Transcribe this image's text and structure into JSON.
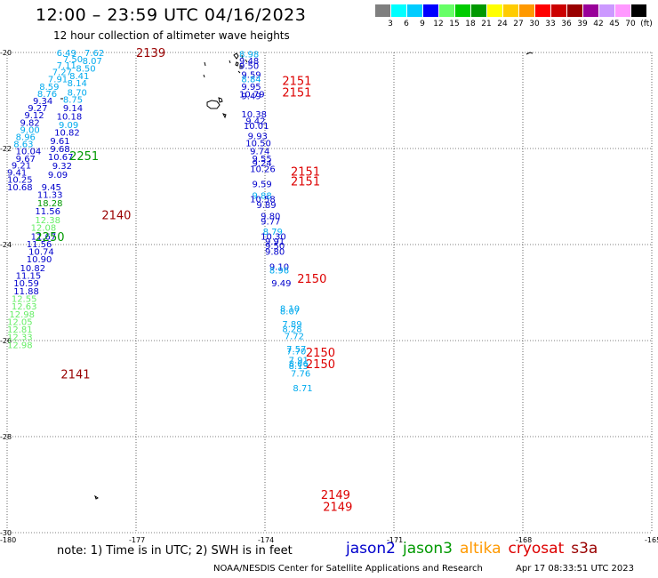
{
  "title": "12:00 – 23:59 UTC 04/16/2023",
  "subtitle": "12 hour collection of altimeter wave heights",
  "colorbar": {
    "colors": [
      "#7f7f7f",
      "#00ffff",
      "#00ccff",
      "#0000ff",
      "#66ff66",
      "#00cc00",
      "#009900",
      "#ffff00",
      "#ffcc00",
      "#ff9900",
      "#ff0000",
      "#cc0000",
      "#990000",
      "#990099",
      "#cc99ff",
      "#ff99ff",
      "#000000"
    ],
    "labels": [
      "3",
      "6",
      "9",
      "12",
      "15",
      "18",
      "21",
      "24",
      "27",
      "30",
      "33",
      "36",
      "39",
      "42",
      "45",
      "70",
      "(ft)"
    ]
  },
  "map": {
    "lon_range": [
      -180,
      -165
    ],
    "lat_range": [
      -30,
      -20
    ],
    "lon_ticks": [
      "-180",
      "-177",
      "-174",
      "-171",
      "-168",
      "-165"
    ],
    "lat_ticks": [
      "-20",
      "-22",
      "-24",
      "-26",
      "-28",
      "-30"
    ],
    "grid": "dotted"
  },
  "passes": [
    {
      "label": "2139",
      "lon": -177.0,
      "lat": -20.0,
      "color": "#990000"
    },
    {
      "label": "2151",
      "lon": -173.6,
      "lat": -20.58,
      "color": "#dd0000"
    },
    {
      "label": "2151",
      "lon": -173.6,
      "lat": -20.82,
      "color": "#dd0000"
    },
    {
      "label": "2251",
      "lon": -178.55,
      "lat": -22.15,
      "color": "#009900"
    },
    {
      "label": "2151",
      "lon": -173.4,
      "lat": -22.47,
      "color": "#dd0000"
    },
    {
      "label": "2151",
      "lon": -173.4,
      "lat": -22.68,
      "color": "#dd0000"
    },
    {
      "label": "2140",
      "lon": -177.8,
      "lat": -23.38,
      "color": "#990000"
    },
    {
      "label": "2250",
      "lon": -179.35,
      "lat": -23.83,
      "color": "#009900"
    },
    {
      "label": "2150",
      "lon": -173.25,
      "lat": -24.7,
      "color": "#dd0000"
    },
    {
      "label": "2150",
      "lon": -173.05,
      "lat": -26.24,
      "color": "#dd0000"
    },
    {
      "label": "2150",
      "lon": -173.05,
      "lat": -26.48,
      "color": "#dd0000"
    },
    {
      "label": "2141",
      "lon": -178.75,
      "lat": -26.69,
      "color": "#990000"
    },
    {
      "label": "2149",
      "lon": -172.7,
      "lat": -29.2,
      "color": "#dd0000"
    },
    {
      "label": "2149",
      "lon": -172.65,
      "lat": -29.45,
      "color": "#dd0000"
    }
  ],
  "measurements": [
    {
      "v": "6.49",
      "lon": -178.85,
      "lat": -20.0,
      "color": "#00aaee"
    },
    {
      "v": "7.62",
      "lon": -178.2,
      "lat": -20.0,
      "color": "#00aaee"
    },
    {
      "v": "7.50",
      "lon": -178.7,
      "lat": -20.13,
      "color": "#00aaee"
    },
    {
      "v": "8.07",
      "lon": -178.25,
      "lat": -20.17,
      "color": "#00aaee"
    },
    {
      "v": "7.11",
      "lon": -178.85,
      "lat": -20.26,
      "color": "#00aaee"
    },
    {
      "v": "8.50",
      "lon": -178.4,
      "lat": -20.32,
      "color": "#00aaee"
    },
    {
      "v": "7.27",
      "lon": -178.95,
      "lat": -20.4,
      "color": "#00aaee"
    },
    {
      "v": "8.41",
      "lon": -178.55,
      "lat": -20.48,
      "color": "#00aaee"
    },
    {
      "v": "7.91",
      "lon": -179.05,
      "lat": -20.55,
      "color": "#00aaee"
    },
    {
      "v": "8.14",
      "lon": -178.6,
      "lat": -20.63,
      "color": "#00aaee"
    },
    {
      "v": "8.59",
      "lon": -179.25,
      "lat": -20.7,
      "color": "#00aaee"
    },
    {
      "v": "8.76",
      "lon": -179.3,
      "lat": -20.85,
      "color": "#00aaee"
    },
    {
      "v": "8.70",
      "lon": -178.6,
      "lat": -20.82,
      "color": "#00aaee"
    },
    {
      "v": "9.34",
      "lon": -179.4,
      "lat": -21.0,
      "color": "#0000cc"
    },
    {
      "v": "8.75",
      "lon": -178.7,
      "lat": -20.97,
      "color": "#00aaee"
    },
    {
      "v": "9.27",
      "lon": -179.52,
      "lat": -21.15,
      "color": "#0000cc"
    },
    {
      "v": "9.14",
      "lon": -178.7,
      "lat": -21.15,
      "color": "#0000cc"
    },
    {
      "v": "9.12",
      "lon": -179.6,
      "lat": -21.3,
      "color": "#0000cc"
    },
    {
      "v": "10.18",
      "lon": -178.85,
      "lat": -21.32,
      "color": "#0000cc"
    },
    {
      "v": "9.82",
      "lon": -179.7,
      "lat": -21.45,
      "color": "#0000cc"
    },
    {
      "v": "9.09",
      "lon": -178.8,
      "lat": -21.5,
      "color": "#00aaee"
    },
    {
      "v": "9.00",
      "lon": -179.7,
      "lat": -21.6,
      "color": "#00aaee"
    },
    {
      "v": "10.82",
      "lon": -178.9,
      "lat": -21.66,
      "color": "#0000cc"
    },
    {
      "v": "8.96",
      "lon": -179.8,
      "lat": -21.75,
      "color": "#00aaee"
    },
    {
      "v": "9.61",
      "lon": -179.0,
      "lat": -21.83,
      "color": "#0000cc"
    },
    {
      "v": "8.63",
      "lon": -179.85,
      "lat": -21.9,
      "color": "#00aaee"
    },
    {
      "v": "10.04",
      "lon": -179.8,
      "lat": -22.05,
      "color": "#0000cc"
    },
    {
      "v": "9.68",
      "lon": -179.0,
      "lat": -22.0,
      "color": "#0000cc"
    },
    {
      "v": "9.67",
      "lon": -179.8,
      "lat": -22.2,
      "color": "#0000cc"
    },
    {
      "v": "10.67",
      "lon": -179.05,
      "lat": -22.17,
      "color": "#0000cc"
    },
    {
      "v": "9.21",
      "lon": -179.9,
      "lat": -22.34,
      "color": "#0000cc"
    },
    {
      "v": "9.32",
      "lon": -178.95,
      "lat": -22.35,
      "color": "#0000cc"
    },
    {
      "v": "9.41",
      "lon": -180.0,
      "lat": -22.49,
      "color": "#0000cc"
    },
    {
      "v": "10.25",
      "lon": -180.0,
      "lat": -22.64,
      "color": "#0000cc"
    },
    {
      "v": "9.09",
      "lon": -179.05,
      "lat": -22.54,
      "color": "#0000cc"
    },
    {
      "v": "10.68",
      "lon": -180.0,
      "lat": -22.8,
      "color": "#0000cc"
    },
    {
      "v": "9.45",
      "lon": -179.2,
      "lat": -22.8,
      "color": "#0000cc"
    },
    {
      "v": "11.33",
      "lon": -179.3,
      "lat": -22.95,
      "color": "#0000cc"
    },
    {
      "v": "18.28",
      "lon": -179.3,
      "lat": -23.13,
      "color": "#009900"
    },
    {
      "v": "11.56",
      "lon": -179.35,
      "lat": -23.3,
      "color": "#0000cc"
    },
    {
      "v": "12.38",
      "lon": -179.35,
      "lat": -23.48,
      "color": "#66ee66"
    },
    {
      "v": "12.08",
      "lon": -179.45,
      "lat": -23.64,
      "color": "#66ee66"
    },
    {
      "v": "11.67",
      "lon": -179.45,
      "lat": -23.82,
      "color": "#0000cc"
    },
    {
      "v": "11.56",
      "lon": -179.55,
      "lat": -23.98,
      "color": "#0000cc"
    },
    {
      "v": "10.74",
      "lon": -179.5,
      "lat": -24.14,
      "color": "#0000cc"
    },
    {
      "v": "10.90",
      "lon": -179.55,
      "lat": -24.3,
      "color": "#0000cc"
    },
    {
      "v": "10.82",
      "lon": -179.7,
      "lat": -24.48,
      "color": "#0000cc"
    },
    {
      "v": "11.15",
      "lon": -179.8,
      "lat": -24.64,
      "color": "#0000cc"
    },
    {
      "v": "10.59",
      "lon": -179.85,
      "lat": -24.8,
      "color": "#0000cc"
    },
    {
      "v": "11.88",
      "lon": -179.85,
      "lat": -24.96,
      "color": "#0000cc"
    },
    {
      "v": "12.55",
      "lon": -179.9,
      "lat": -25.12,
      "color": "#66ee66"
    },
    {
      "v": "12.63",
      "lon": -179.9,
      "lat": -25.28,
      "color": "#66ee66"
    },
    {
      "v": "12.98",
      "lon": -179.95,
      "lat": -25.44,
      "color": "#66ee66"
    },
    {
      "v": "12.05",
      "lon": -180.0,
      "lat": -25.6,
      "color": "#66ee66"
    },
    {
      "v": "12.81",
      "lon": -180.0,
      "lat": -25.76,
      "color": "#66ee66"
    },
    {
      "v": "12.33",
      "lon": -180.0,
      "lat": -25.92,
      "color": "#66ee66"
    },
    {
      "v": "12.98",
      "lon": -180.0,
      "lat": -26.08,
      "color": "#66ee66"
    },
    {
      "v": "8.98",
      "lon": -174.6,
      "lat": -20.03,
      "color": "#00aaee"
    },
    {
      "v": "9.48",
      "lon": -174.6,
      "lat": -20.17,
      "color": "#0000cc"
    },
    {
      "v": "9.50",
      "lon": -174.6,
      "lat": -20.27,
      "color": "#0000cc"
    },
    {
      "v": "9.59",
      "lon": -174.55,
      "lat": -20.45,
      "color": "#0000cc"
    },
    {
      "v": "8.84",
      "lon": -174.55,
      "lat": -20.55,
      "color": "#00aaee"
    },
    {
      "v": "9.95",
      "lon": -174.55,
      "lat": -20.7,
      "color": "#0000cc"
    },
    {
      "v": "10.79",
      "lon": -174.6,
      "lat": -20.86,
      "color": "#0000cc"
    },
    {
      "v": "9.49",
      "lon": -174.55,
      "lat": -20.9,
      "color": "#0000cc"
    },
    {
      "v": "10.38",
      "lon": -174.55,
      "lat": -21.28,
      "color": "#0000cc"
    },
    {
      "v": "9.42",
      "lon": -174.45,
      "lat": -21.42,
      "color": "#0000cc"
    },
    {
      "v": "10.01",
      "lon": -174.5,
      "lat": -21.52,
      "color": "#0000cc"
    },
    {
      "v": "9.93",
      "lon": -174.4,
      "lat": -21.73,
      "color": "#0000cc"
    },
    {
      "v": "10.50",
      "lon": -174.45,
      "lat": -21.88,
      "color": "#0000cc"
    },
    {
      "v": "9.74",
      "lon": -174.35,
      "lat": -22.05,
      "color": "#0000cc"
    },
    {
      "v": "9.55",
      "lon": -174.3,
      "lat": -22.2,
      "color": "#0000cc"
    },
    {
      "v": "9.24",
      "lon": -174.3,
      "lat": -22.3,
      "color": "#0000cc"
    },
    {
      "v": "10.26",
      "lon": -174.35,
      "lat": -22.42,
      "color": "#0000cc"
    },
    {
      "v": "9.59",
      "lon": -174.3,
      "lat": -22.73,
      "color": "#0000cc"
    },
    {
      "v": "9.88",
      "lon": -174.3,
      "lat": -22.97,
      "color": "#00aaee"
    },
    {
      "v": "10.58",
      "lon": -174.35,
      "lat": -23.05,
      "color": "#0000cc"
    },
    {
      "v": "9.89",
      "lon": -174.2,
      "lat": -23.17,
      "color": "#0000cc"
    },
    {
      "v": "9.80",
      "lon": -174.1,
      "lat": -23.4,
      "color": "#0000cc"
    },
    {
      "v": "9.77",
      "lon": -174.1,
      "lat": -23.51,
      "color": "#0000cc"
    },
    {
      "v": "8.79",
      "lon": -174.05,
      "lat": -23.72,
      "color": "#00aaee"
    },
    {
      "v": "10.30",
      "lon": -174.1,
      "lat": -23.82,
      "color": "#0000cc"
    },
    {
      "v": "9.91",
      "lon": -174.0,
      "lat": -23.93,
      "color": "#0000cc"
    },
    {
      "v": "9.50",
      "lon": -174.0,
      "lat": -24.02,
      "color": "#0000cc"
    },
    {
      "v": "9.80",
      "lon": -174.0,
      "lat": -24.14,
      "color": "#0000cc"
    },
    {
      "v": "9.10",
      "lon": -173.9,
      "lat": -24.45,
      "color": "#0000cc"
    },
    {
      "v": "8.96",
      "lon": -173.9,
      "lat": -24.53,
      "color": "#00aaee"
    },
    {
      "v": "9.49",
      "lon": -173.85,
      "lat": -24.8,
      "color": "#0000cc"
    },
    {
      "v": "8.10",
      "lon": -173.65,
      "lat": -25.32,
      "color": "#00aaee"
    },
    {
      "v": "8.07",
      "lon": -173.65,
      "lat": -25.38,
      "color": "#00aaee"
    },
    {
      "v": "7.89",
      "lon": -173.6,
      "lat": -25.65,
      "color": "#00aaee"
    },
    {
      "v": "8.28",
      "lon": -173.6,
      "lat": -25.75,
      "color": "#00aaee"
    },
    {
      "v": "7.72",
      "lon": -173.55,
      "lat": -25.9,
      "color": "#00aaee"
    },
    {
      "v": "7.57",
      "lon": -173.5,
      "lat": -26.17,
      "color": "#00aaee"
    },
    {
      "v": "7.70",
      "lon": -173.5,
      "lat": -26.21,
      "color": "#00aaee"
    },
    {
      "v": "7.91",
      "lon": -173.45,
      "lat": -26.4,
      "color": "#00aaee"
    },
    {
      "v": "8.06",
      "lon": -173.45,
      "lat": -26.47,
      "color": "#00aaee"
    },
    {
      "v": "8.13",
      "lon": -173.45,
      "lat": -26.52,
      "color": "#00aaee"
    },
    {
      "v": "7.76",
      "lon": -173.4,
      "lat": -26.68,
      "color": "#00aaee"
    },
    {
      "v": "8.71",
      "lon": -173.35,
      "lat": -26.98,
      "color": "#00aaee"
    }
  ],
  "footer": {
    "note": "note:  1) Time is in UTC;  2) SWH is in feet",
    "satellites": [
      {
        "name": "jason2",
        "color": "#0000cc"
      },
      {
        "name": "jason3",
        "color": "#009900"
      },
      {
        "name": "altika",
        "color": "#ff9900"
      },
      {
        "name": "cryosat",
        "color": "#dd0000"
      },
      {
        "name": "s3a",
        "color": "#990000"
      }
    ],
    "credit": "NOAA/NESDIS Center for Satellite Applications and Research",
    "timestamp": "Apr 17 08:33:51 UTC 2023"
  }
}
